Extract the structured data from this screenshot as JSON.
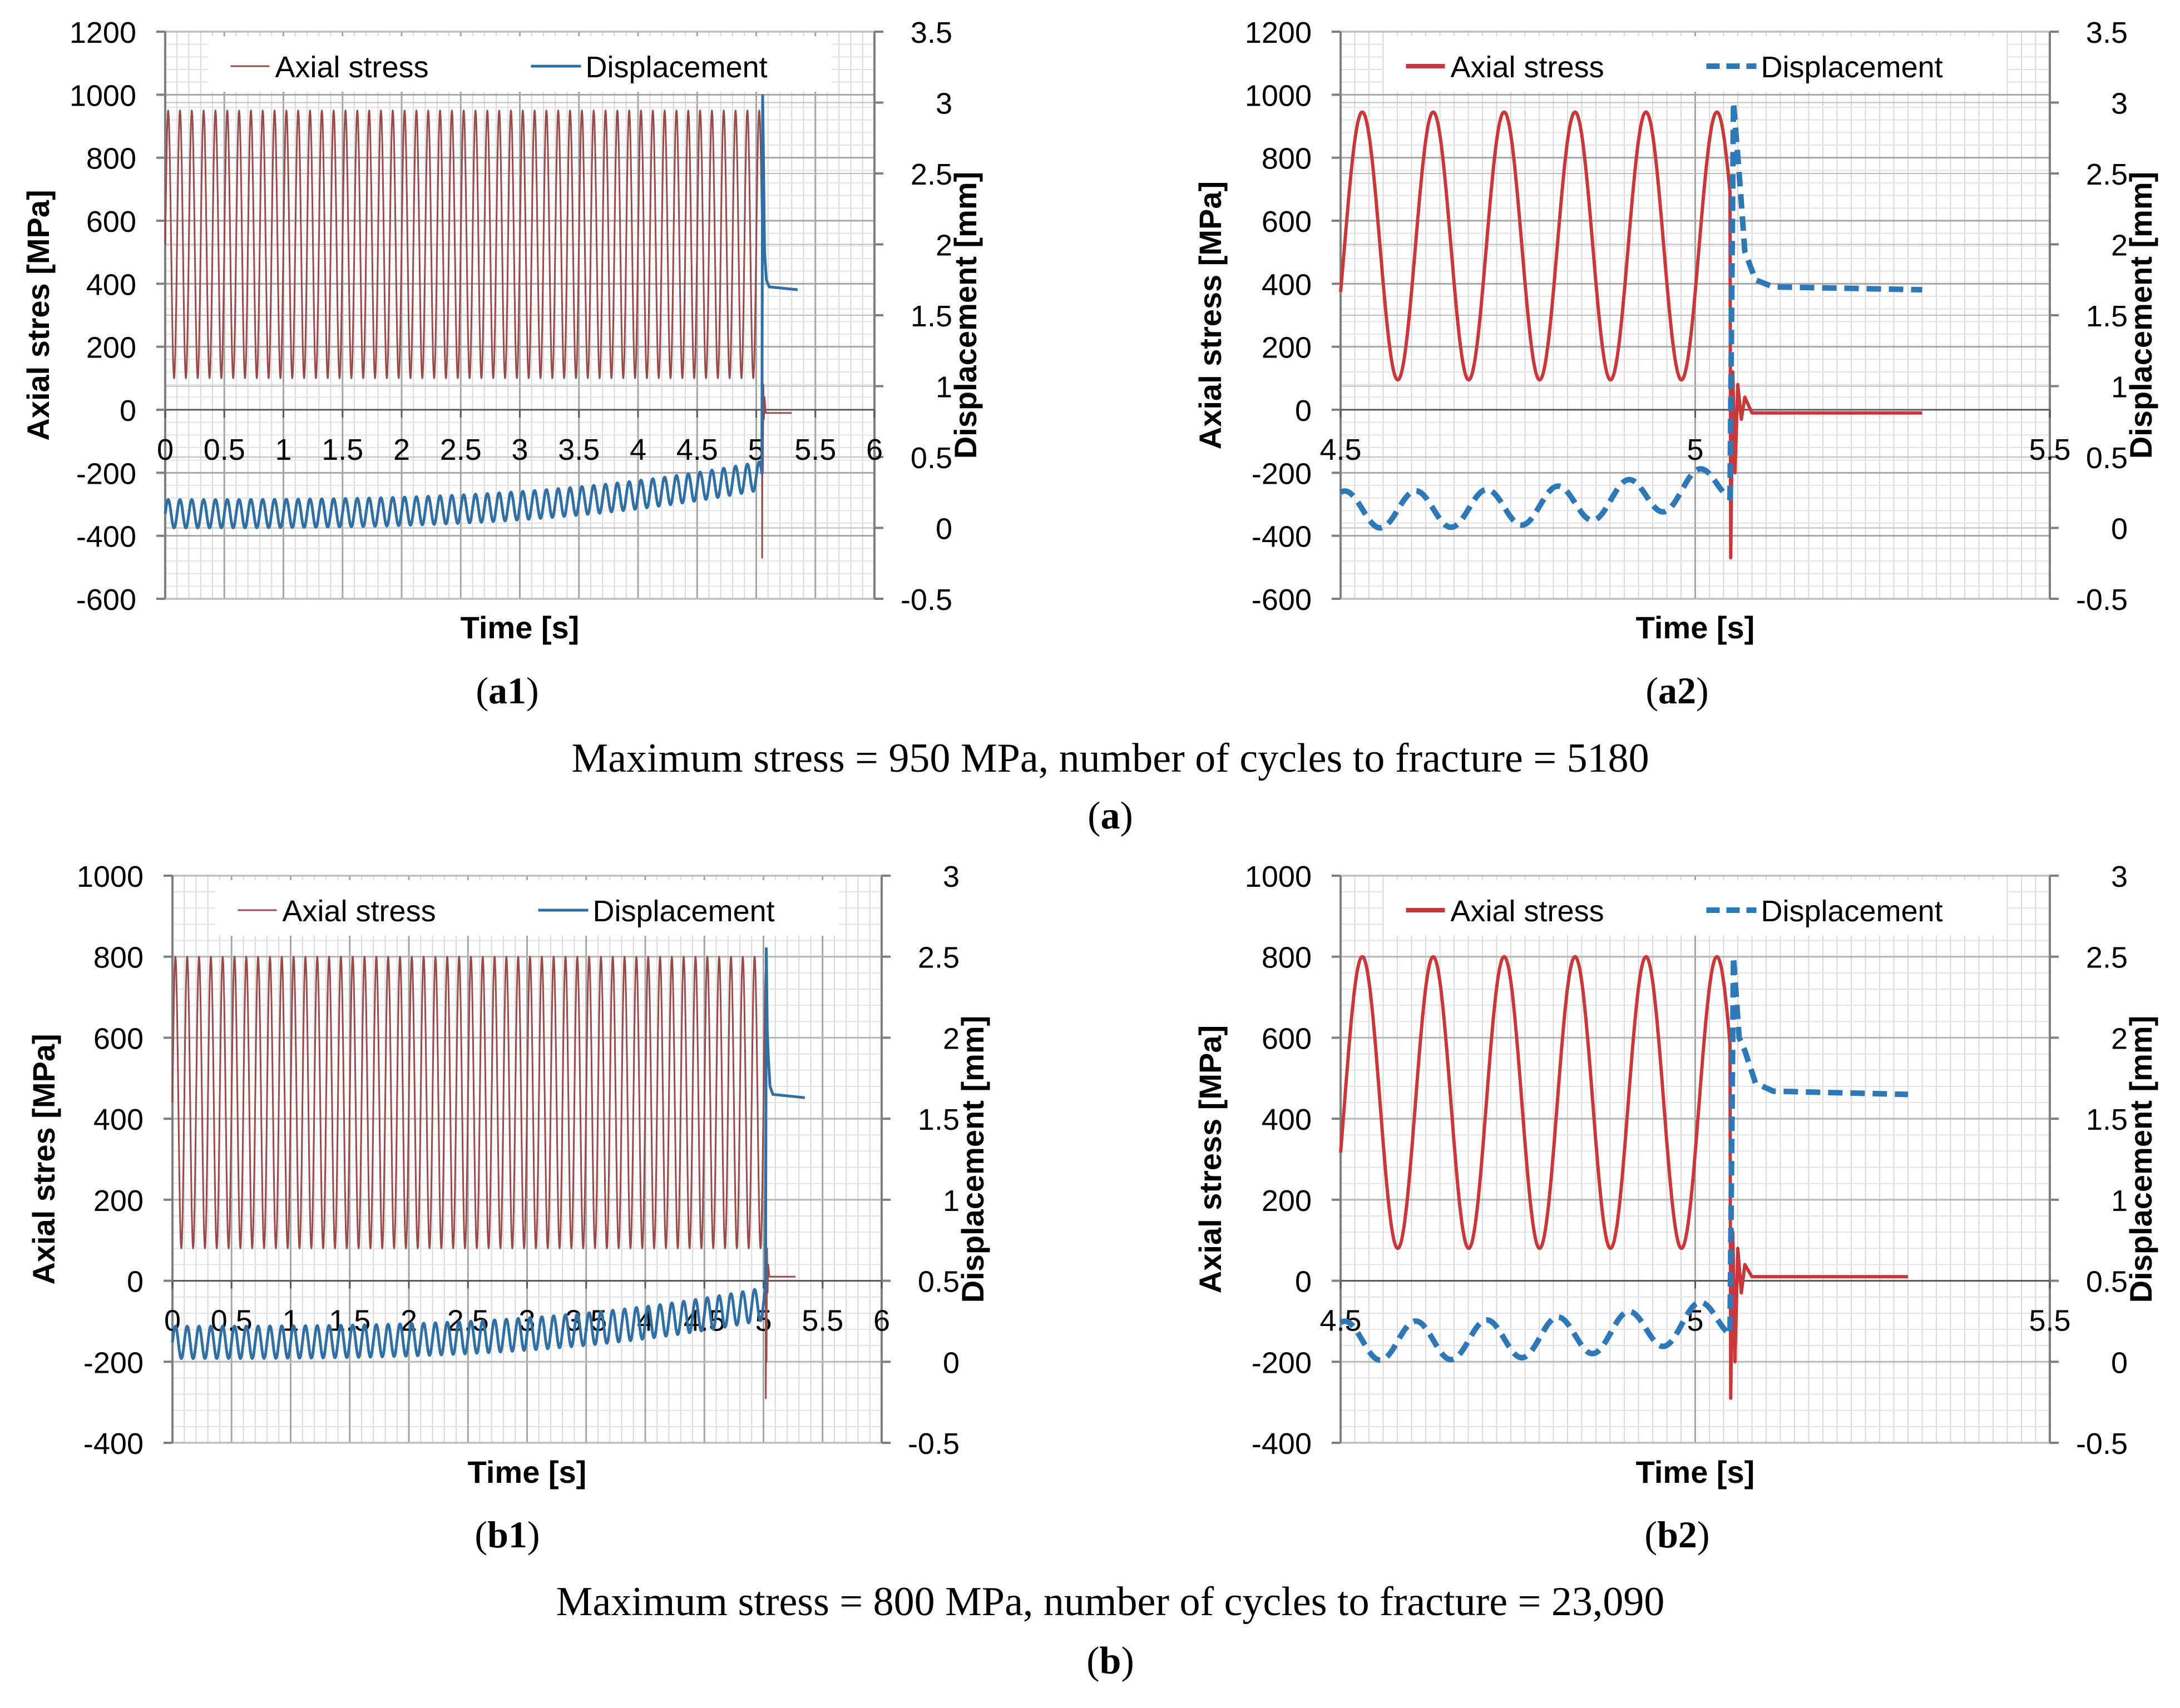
{
  "colors": {
    "stress_overview": "#9a4a4a",
    "stress_zoom": "#c8373a",
    "displacement_overview": "#2f6fa3",
    "displacement_zoom": "#2f78b8",
    "axis": "#7f7f7f",
    "grid": "#bfbfbf"
  },
  "figure": {
    "group_a": {
      "caption": "Maximum stress = 950 MPa, number of cycles to fracture = 5180",
      "label_open": "(",
      "label_letter": "a",
      "label_close": ")"
    },
    "group_b": {
      "caption": "Maximum stress = 800 MPa, number of cycles to fracture = 23,090",
      "label_open": "(",
      "label_letter": "b",
      "label_close": ")"
    }
  },
  "chart_data": [
    {
      "id": "a1",
      "panel_label": {
        "open": "(",
        "bold": "a1",
        "close": ")"
      },
      "type": "line",
      "xlabel": "Time [s]",
      "ylabel": "Axial stres [MPa]",
      "y2label": "Displacement [mm]",
      "xlim": [
        0,
        6
      ],
      "ylim": [
        -600,
        1200
      ],
      "y2lim": [
        -0.5,
        3.5
      ],
      "x_ticks": [
        "0",
        "0.5",
        "1",
        "1.5",
        "2",
        "2.5",
        "3",
        "3.5",
        "4",
        "4.5",
        "5",
        "5.5",
        "6"
      ],
      "y_ticks": [
        "-600",
        "-400",
        "-200",
        "0",
        "200",
        "400",
        "600",
        "800",
        "1000",
        "1200"
      ],
      "y2_ticks": [
        "-0.5",
        "0",
        "0.5",
        "1",
        "1.5",
        "2",
        "2.5",
        "3",
        "3.5"
      ],
      "legend": {
        "position": "top",
        "style": "thin",
        "items": [
          "Axial stress",
          "Displacement"
        ]
      },
      "series": [
        {
          "name": "Axial stress",
          "axis": "left",
          "mean": 525,
          "amplitude": 425,
          "freq": 10,
          "end_time": 5.05,
          "spike_min": -470,
          "post_level": -10
        },
        {
          "name": "Displacement",
          "axis": "right",
          "start_mean": 0.1,
          "end_mean": 0.37,
          "amplitude": 0.1,
          "freq": 10,
          "end_time": 5.05,
          "peak": 3.05,
          "plateau": 1.7,
          "plateau_end": 5.35
        }
      ]
    },
    {
      "id": "a2",
      "panel_label": {
        "open": "(",
        "bold": "a2",
        "close": ")"
      },
      "type": "line",
      "xlabel": "Time [s]",
      "ylabel": "Axial stress [MPa]",
      "y2label": "Displacement [mm]",
      "xlim": [
        4.5,
        5.5
      ],
      "ylim": [
        -600,
        1200
      ],
      "y2lim": [
        -0.5,
        3.5
      ],
      "x_ticks": [
        "4.5",
        "5",
        "5.5"
      ],
      "y_ticks": [
        "-600",
        "-400",
        "-200",
        "0",
        "200",
        "400",
        "600",
        "800",
        "1000",
        "1200"
      ],
      "y2_ticks": [
        "-0.5",
        "0",
        "0.5",
        "1",
        "1.5",
        "2",
        "2.5",
        "3",
        "3.5"
      ],
      "legend": {
        "position": "top",
        "style": "thick",
        "items": [
          "Axial stress",
          "Displacement"
        ]
      },
      "series": [
        {
          "name": "Axial stress",
          "axis": "left",
          "mean": 520,
          "amplitude": 425,
          "freq": 10,
          "end_time": 5.05,
          "spike_min": -470,
          "post_level": -10,
          "post_end": 5.32
        },
        {
          "name": "Displacement",
          "axis": "right",
          "start_mean": 0.13,
          "end_mean": 0.33,
          "amplitude": 0.13,
          "freq": 10,
          "end_time": 5.05,
          "peak": 3.0,
          "plateau": 1.7,
          "plateau_end": 5.32
        }
      ]
    },
    {
      "id": "b1",
      "panel_label": {
        "open": "(",
        "bold": "b1",
        "close": ")"
      },
      "type": "line",
      "xlabel": "Time [s]",
      "ylabel": "Axial stres [MPa]",
      "y2label": "Displacement [mm]",
      "xlim": [
        0,
        6
      ],
      "ylim": [
        -400,
        1000
      ],
      "y2lim": [
        -0.5,
        3
      ],
      "x_ticks": [
        "0",
        "0.5",
        "1",
        "1.5",
        "2",
        "2.5",
        "3",
        "3.5",
        "4",
        "4.5",
        "5",
        "5.5",
        "6"
      ],
      "y_ticks": [
        "-400",
        "-200",
        "0",
        "200",
        "400",
        "600",
        "800",
        "1000"
      ],
      "y2_ticks": [
        "-0.5",
        "0",
        "0.5",
        "1",
        "1.5",
        "2",
        "2.5",
        "3"
      ],
      "legend": {
        "position": "top",
        "style": "thin",
        "items": [
          "Axial stress",
          "Displacement"
        ]
      },
      "series": [
        {
          "name": "Axial stress",
          "axis": "left",
          "mean": 440,
          "amplitude": 360,
          "freq": 10,
          "end_time": 5.02,
          "spike_min": -290,
          "post_level": 10
        },
        {
          "name": "Displacement",
          "axis": "right",
          "start_mean": 0.12,
          "end_mean": 0.36,
          "amplitude": 0.1,
          "freq": 10,
          "end_time": 5.02,
          "peak": 2.55,
          "plateau": 1.65,
          "plateau_end": 5.35
        }
      ]
    },
    {
      "id": "b2",
      "panel_label": {
        "open": "(",
        "bold": "b2",
        "close": ")"
      },
      "type": "line",
      "xlabel": "Time [s]",
      "ylabel": "Axial stress [MPa]",
      "y2label": "Displacement [mm]",
      "xlim": [
        4.5,
        5.5
      ],
      "ylim": [
        -400,
        1000
      ],
      "y2lim": [
        -0.5,
        3
      ],
      "x_ticks": [
        "4.5",
        "5",
        "5.5"
      ],
      "y_ticks": [
        "-400",
        "-200",
        "0",
        "200",
        "400",
        "600",
        "800",
        "1000"
      ],
      "y2_ticks": [
        "-0.5",
        "0",
        "0.5",
        "1",
        "1.5",
        "2",
        "2.5",
        "3"
      ],
      "legend": {
        "position": "top",
        "style": "thick",
        "items": [
          "Axial stress",
          "Displacement"
        ]
      },
      "series": [
        {
          "name": "Axial stress",
          "axis": "left",
          "mean": 440,
          "amplitude": 360,
          "freq": 10,
          "end_time": 5.05,
          "spike_min": -290,
          "post_level": 10,
          "post_end": 5.3
        },
        {
          "name": "Displacement",
          "axis": "right",
          "start_mean": 0.13,
          "end_mean": 0.28,
          "amplitude": 0.12,
          "freq": 10,
          "end_time": 5.05,
          "peak": 2.5,
          "plateau": 1.67,
          "plateau_end": 5.3
        }
      ]
    }
  ]
}
